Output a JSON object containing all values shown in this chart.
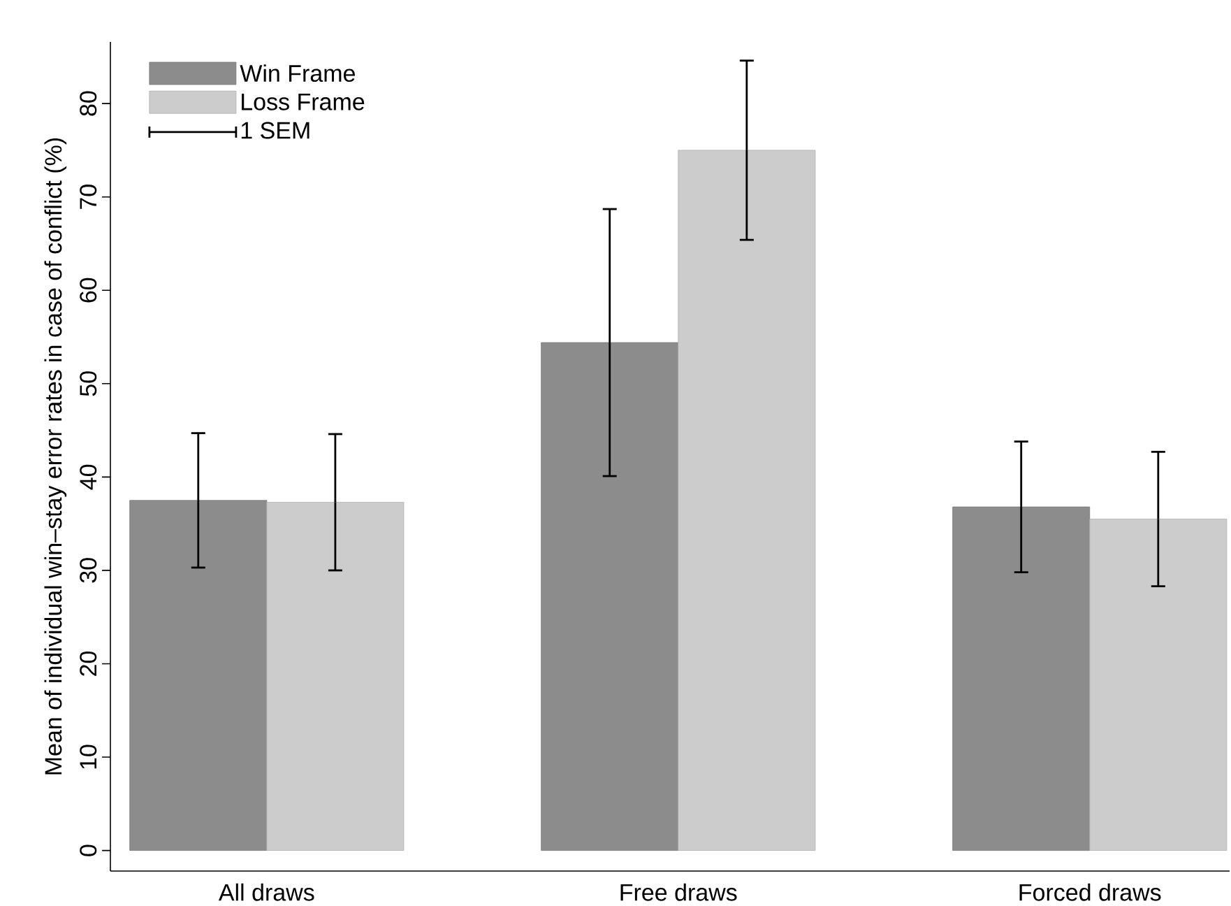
{
  "chart_data": {
    "type": "bar",
    "ylabel": "Mean of individual win–stay error rates in case of conflict (%)",
    "categories": [
      "All draws",
      "Free draws",
      "Forced draws"
    ],
    "series": [
      {
        "name": "Win Frame",
        "color": "#8c8c8c",
        "values": [
          37.5,
          54.4,
          36.8
        ],
        "errors": [
          7.2,
          14.3,
          7.0
        ]
      },
      {
        "name": "Loss Frame",
        "color": "#cccccc",
        "values": [
          37.3,
          75.0,
          35.5
        ],
        "errors": [
          7.3,
          9.6,
          7.2
        ]
      }
    ],
    "ylim": [
      -2.2,
      86.6
    ],
    "yticks": [
      0,
      10,
      20,
      30,
      40,
      50,
      60,
      70,
      80
    ],
    "annotations": [
      "1 SEM"
    ],
    "legend": "top left",
    "grid": false
  }
}
